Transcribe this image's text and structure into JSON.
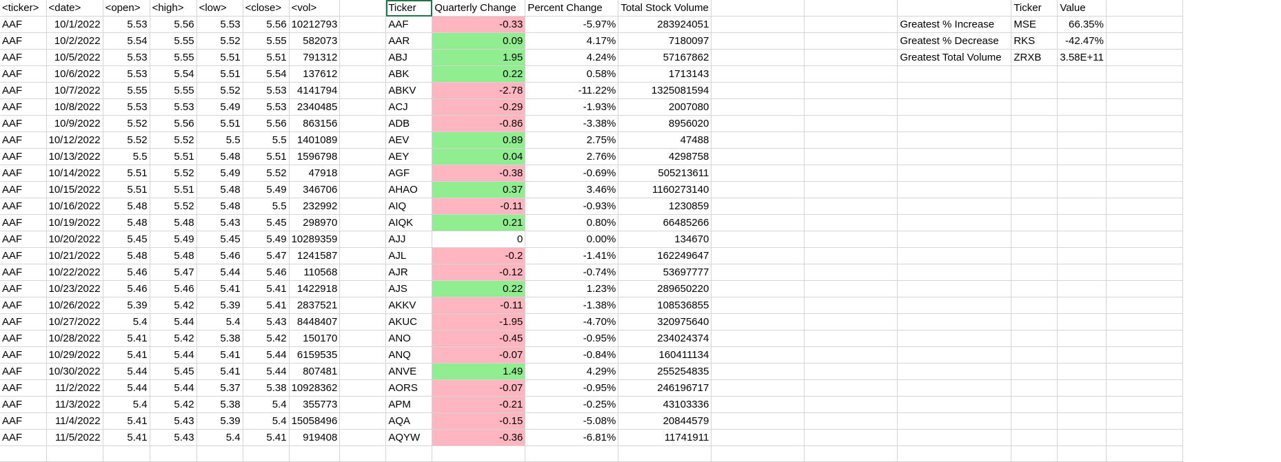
{
  "sheet": {
    "headers": {
      "ticker": "<ticker>",
      "date": "<date>",
      "open": "<open>",
      "high": "<high>",
      "low": "<low>",
      "close": "<close>",
      "vol": "<vol>",
      "summary_ticker": "Ticker",
      "quarterly_change": "Quarterly Change",
      "percent_change": "Percent Change",
      "total_volume": "Total Stock Volume",
      "greatest_ticker": "Ticker",
      "greatest_value": "Value"
    },
    "data_rows": [
      [
        "AAF",
        "10/1/2022",
        "5.53",
        "5.56",
        "5.53",
        "5.56",
        "10212793"
      ],
      [
        "AAF",
        "10/2/2022",
        "5.54",
        "5.55",
        "5.52",
        "5.55",
        "582073"
      ],
      [
        "AAF",
        "10/5/2022",
        "5.53",
        "5.55",
        "5.51",
        "5.51",
        "791312"
      ],
      [
        "AAF",
        "10/6/2022",
        "5.53",
        "5.54",
        "5.51",
        "5.54",
        "137612"
      ],
      [
        "AAF",
        "10/7/2022",
        "5.55",
        "5.55",
        "5.52",
        "5.53",
        "4141794"
      ],
      [
        "AAF",
        "10/8/2022",
        "5.53",
        "5.53",
        "5.49",
        "5.53",
        "2340485"
      ],
      [
        "AAF",
        "10/9/2022",
        "5.52",
        "5.56",
        "5.51",
        "5.56",
        "863156"
      ],
      [
        "AAF",
        "10/12/2022",
        "5.52",
        "5.52",
        "5.5",
        "5.5",
        "1401089"
      ],
      [
        "AAF",
        "10/13/2022",
        "5.5",
        "5.51",
        "5.48",
        "5.51",
        "1596798"
      ],
      [
        "AAF",
        "10/14/2022",
        "5.51",
        "5.52",
        "5.49",
        "5.52",
        "47918"
      ],
      [
        "AAF",
        "10/15/2022",
        "5.51",
        "5.51",
        "5.48",
        "5.49",
        "346706"
      ],
      [
        "AAF",
        "10/16/2022",
        "5.48",
        "5.52",
        "5.48",
        "5.5",
        "232992"
      ],
      [
        "AAF",
        "10/19/2022",
        "5.48",
        "5.48",
        "5.43",
        "5.45",
        "298970"
      ],
      [
        "AAF",
        "10/20/2022",
        "5.45",
        "5.49",
        "5.45",
        "5.49",
        "10289359"
      ],
      [
        "AAF",
        "10/21/2022",
        "5.48",
        "5.48",
        "5.46",
        "5.47",
        "1241587"
      ],
      [
        "AAF",
        "10/22/2022",
        "5.46",
        "5.47",
        "5.44",
        "5.46",
        "110568"
      ],
      [
        "AAF",
        "10/23/2022",
        "5.46",
        "5.46",
        "5.41",
        "5.41",
        "1422918"
      ],
      [
        "AAF",
        "10/26/2022",
        "5.39",
        "5.42",
        "5.39",
        "5.41",
        "2837521"
      ],
      [
        "AAF",
        "10/27/2022",
        "5.4",
        "5.44",
        "5.4",
        "5.43",
        "8448407"
      ],
      [
        "AAF",
        "10/28/2022",
        "5.41",
        "5.42",
        "5.38",
        "5.42",
        "150170"
      ],
      [
        "AAF",
        "10/29/2022",
        "5.41",
        "5.44",
        "5.41",
        "5.44",
        "6159535"
      ],
      [
        "AAF",
        "10/30/2022",
        "5.44",
        "5.45",
        "5.41",
        "5.44",
        "807481"
      ],
      [
        "AAF",
        "11/2/2022",
        "5.44",
        "5.44",
        "5.37",
        "5.38",
        "10928362"
      ],
      [
        "AAF",
        "11/3/2022",
        "5.4",
        "5.42",
        "5.38",
        "5.4",
        "355773"
      ],
      [
        "AAF",
        "11/4/2022",
        "5.41",
        "5.43",
        "5.39",
        "5.4",
        "15058496"
      ],
      [
        "AAF",
        "11/5/2022",
        "5.41",
        "5.43",
        "5.4",
        "5.41",
        "919408"
      ]
    ],
    "summary_rows": [
      [
        "AAF",
        "-0.33",
        "-5.97%",
        "283924051"
      ],
      [
        "AAR",
        "0.09",
        "4.17%",
        "7180097"
      ],
      [
        "ABJ",
        "1.95",
        "4.24%",
        "57167862"
      ],
      [
        "ABK",
        "0.22",
        "0.58%",
        "1713143"
      ],
      [
        "ABKV",
        "-2.78",
        "-11.22%",
        "1325081594"
      ],
      [
        "ACJ",
        "-0.29",
        "-1.93%",
        "2007080"
      ],
      [
        "ADB",
        "-0.86",
        "-3.38%",
        "8956020"
      ],
      [
        "AEV",
        "0.89",
        "2.75%",
        "47488"
      ],
      [
        "AEY",
        "0.04",
        "2.76%",
        "4298758"
      ],
      [
        "AGF",
        "-0.38",
        "-0.69%",
        "505213611"
      ],
      [
        "AHAO",
        "0.37",
        "3.46%",
        "1160273140"
      ],
      [
        "AIQ",
        "-0.11",
        "-0.93%",
        "1230859"
      ],
      [
        "AIQK",
        "0.21",
        "0.80%",
        "66485266"
      ],
      [
        "AJJ",
        "0",
        "0.00%",
        "134670"
      ],
      [
        "AJL",
        "-0.2",
        "-1.41%",
        "162249647"
      ],
      [
        "AJR",
        "-0.12",
        "-0.74%",
        "53697777"
      ],
      [
        "AJS",
        "0.22",
        "1.23%",
        "289650220"
      ],
      [
        "AKKV",
        "-0.11",
        "-1.38%",
        "108536855"
      ],
      [
        "AKUC",
        "-1.95",
        "-4.70%",
        "320975640"
      ],
      [
        "ANO",
        "-0.45",
        "-0.95%",
        "234024374"
      ],
      [
        "ANQ",
        "-0.07",
        "-0.84%",
        "160411134"
      ],
      [
        "ANVE",
        "1.49",
        "4.29%",
        "255254835"
      ],
      [
        "AORS",
        "-0.07",
        "-0.95%",
        "246196717"
      ],
      [
        "APM",
        "-0.21",
        "-0.25%",
        "43103336"
      ],
      [
        "AQA",
        "-0.15",
        "-5.08%",
        "20844579"
      ],
      [
        "AQYW",
        "-0.36",
        "-6.81%",
        "11741911"
      ]
    ],
    "greatest": [
      [
        "Greatest % Increase",
        "MSE",
        "66.35%"
      ],
      [
        "Greatest % Decrease",
        "RKS",
        "-42.47%"
      ],
      [
        "Greatest Total Volume",
        "ZRXB",
        "3.58E+11"
      ]
    ],
    "colors": {
      "positive": "#90ee90",
      "negative": "#ffb6c1",
      "selection": "#217346",
      "grid": "#d4d4d4"
    }
  }
}
